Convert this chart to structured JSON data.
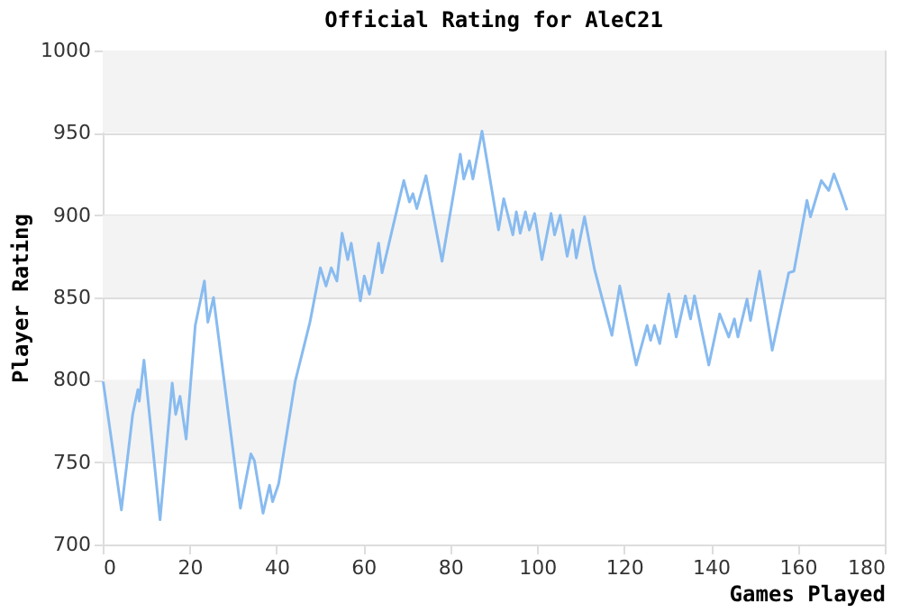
{
  "chart_data": {
    "type": "line",
    "title": "Official Rating for AleC21",
    "xlabel": "Games Played",
    "ylabel": "Player Rating",
    "xlim": [
      0,
      180
    ],
    "xticks": [
      0,
      20,
      40,
      60,
      80,
      100,
      120,
      140,
      160,
      180
    ],
    "ylim": [
      700,
      1000
    ],
    "yticks": [
      700,
      750,
      800,
      850,
      900,
      950,
      1000
    ],
    "grid": "y",
    "marker": "none",
    "line_style": "solid",
    "series": [
      {
        "color": "#88bbf0",
        "x": [
          0.1,
          4.3,
          6.9,
          8.1,
          8.4,
          9.5,
          13.2,
          16.0,
          16.8,
          17.8,
          19.2,
          21.3,
          23.4,
          24.2,
          25.5,
          31.7,
          34.1,
          34.9,
          36.9,
          38.4,
          39.1,
          40.5,
          44.3,
          47.7,
          50.1,
          51.4,
          52.6,
          53.9,
          55.1,
          56.4,
          57.2,
          59.3,
          60.2,
          61.4,
          63.5,
          64.3,
          69.3,
          70.6,
          71.4,
          72.3,
          74.4,
          78.1,
          82.3,
          83.1,
          84.4,
          85.2,
          87.3,
          91.1,
          92.3,
          94.4,
          95.2,
          96.1,
          97.3,
          98.2,
          99.4,
          101.1,
          103.2,
          104.0,
          105.3,
          106.9,
          108.2,
          109.0,
          110.9,
          113.2,
          117.2,
          119.0,
          122.8,
          125.3,
          126.1,
          127.0,
          128.2,
          130.3,
          132.0,
          134.1,
          135.3,
          136.2,
          139.5,
          142.0,
          144.1,
          145.4,
          146.2,
          148.3,
          149.1,
          151.2,
          154.1,
          157.9,
          159.1,
          162.1,
          162.9,
          165.4,
          167.1,
          168.3,
          170.0,
          171.3
        ],
        "values": [
          799,
          721,
          779,
          794,
          787,
          812,
          715,
          798,
          779,
          790,
          764,
          833,
          860,
          835,
          850,
          722,
          755,
          751,
          719,
          736,
          726,
          737,
          799,
          835,
          868,
          857,
          868,
          860,
          889,
          873,
          883,
          848,
          863,
          852,
          883,
          865,
          921,
          908,
          913,
          904,
          924,
          872,
          937,
          922,
          933,
          922,
          951,
          891,
          910,
          888,
          902,
          889,
          902,
          891,
          901,
          873,
          901,
          888,
          900,
          875,
          891,
          874,
          899,
          867,
          827,
          857,
          809,
          833,
          824,
          833,
          822,
          852,
          826,
          851,
          837,
          851,
          809,
          840,
          826,
          837,
          826,
          849,
          836,
          866,
          818,
          865,
          866,
          909,
          899,
          921,
          915,
          925,
          913,
          903
        ]
      }
    ]
  }
}
